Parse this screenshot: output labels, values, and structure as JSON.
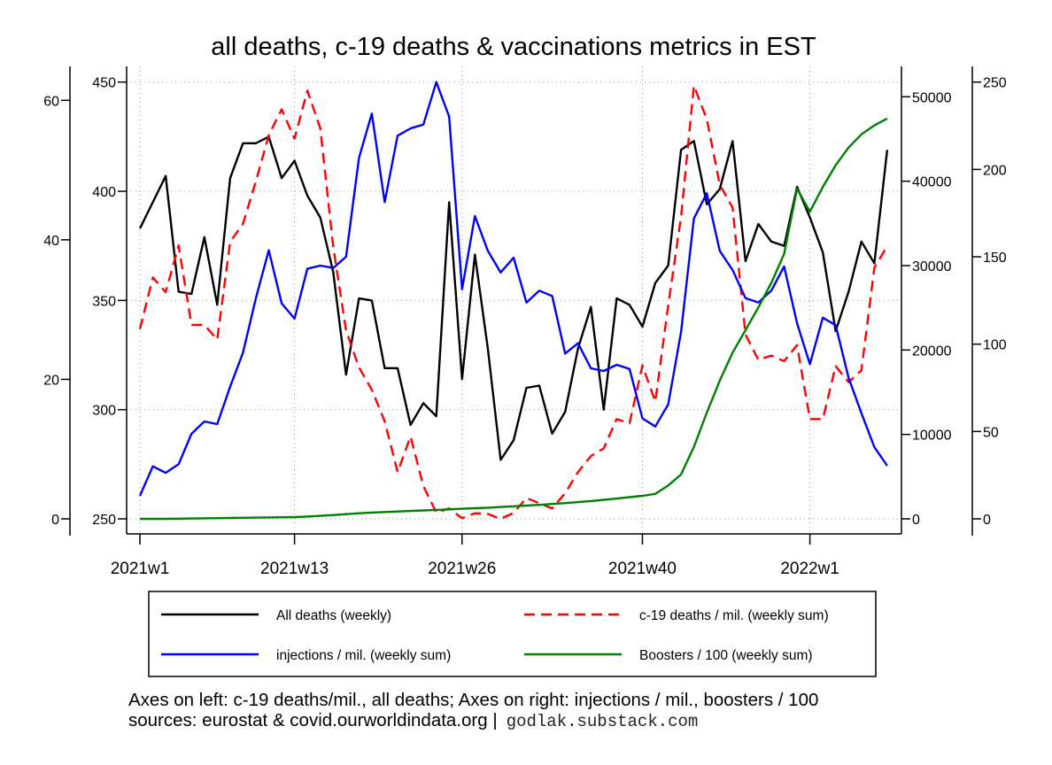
{
  "chart_data": {
    "type": "line",
    "title": "all deaths, c-19 deaths & vaccinations metrics in EST",
    "x": [
      "2021w1",
      "2021w2",
      "2021w3",
      "2021w4",
      "2021w5",
      "2021w6",
      "2021w7",
      "2021w8",
      "2021w9",
      "2021w10",
      "2021w11",
      "2021w12",
      "2021w13",
      "2021w14",
      "2021w15",
      "2021w16",
      "2021w17",
      "2021w18",
      "2021w19",
      "2021w20",
      "2021w21",
      "2021w22",
      "2021w23",
      "2021w24",
      "2021w25",
      "2021w26",
      "2021w27",
      "2021w28",
      "2021w29",
      "2021w30",
      "2021w31",
      "2021w32",
      "2021w33",
      "2021w34",
      "2021w35",
      "2021w36",
      "2021w37",
      "2021w38",
      "2021w39",
      "2021w40",
      "2021w41",
      "2021w42",
      "2021w43",
      "2021w44",
      "2021w45",
      "2021w46",
      "2021w47",
      "2021w48",
      "2021w49",
      "2021w50",
      "2021w51",
      "2021w52",
      "2022w1",
      "2022w2",
      "2022w3",
      "2022w4",
      "2022w5",
      "2022w6",
      "2022w7"
    ],
    "x_tick_labels": [
      "2021w1",
      "2021w13",
      "2021w26",
      "2021w40",
      "2022w1"
    ],
    "axes": {
      "left_outer": {
        "label": "c-19 deaths / mil.",
        "range": [
          0,
          60
        ],
        "ticks": [
          "0",
          "20",
          "40",
          "60"
        ]
      },
      "left_inner": {
        "label": "all deaths",
        "range": [
          250,
          450
        ],
        "ticks": [
          "250",
          "300",
          "350",
          "400",
          "450"
        ]
      },
      "right_inner": {
        "label": "injections / mil.",
        "range": [
          0,
          50000
        ],
        "ticks": [
          "0",
          "10000",
          "20000",
          "30000",
          "40000",
          "50000"
        ]
      },
      "right_outer": {
        "label": "boosters / 100",
        "range": [
          0,
          250
        ],
        "ticks": [
          "0",
          "50",
          "100",
          "150",
          "200",
          "250"
        ]
      }
    },
    "grid": true,
    "legend_position": "bottom",
    "series": [
      {
        "name": "All deaths (weekly)",
        "axis": "left_inner",
        "color": "#000000",
        "dash": false,
        "values": [
          383,
          395,
          407,
          354,
          353,
          379,
          348,
          406,
          422,
          422,
          425,
          406,
          414,
          398,
          388,
          363,
          316,
          351,
          350,
          319,
          319,
          293,
          303,
          297,
          395,
          314,
          371,
          328,
          277,
          286,
          310,
          311,
          289,
          299,
          328,
          347,
          300,
          351,
          348,
          338,
          358,
          366,
          419,
          423,
          394,
          401,
          423,
          368,
          385,
          377,
          375,
          402,
          388,
          372,
          336,
          354,
          377,
          367,
          419
        ]
      },
      {
        "name": "c-19 deaths / mil. (weekly sum)",
        "axis": "left_outer",
        "color": "#ff0000",
        "dash": true,
        "values": [
          27.2,
          34.6,
          32.5,
          39.2,
          27.8,
          27.8,
          25.7,
          39.7,
          42.3,
          48.4,
          55.0,
          58.7,
          54.5,
          61.4,
          56.0,
          39.0,
          27.0,
          21.7,
          18.5,
          14.0,
          6.7,
          11.8,
          4.7,
          0.9,
          1.5,
          0.1,
          0.8,
          0.7,
          0.0,
          0.85,
          3.0,
          2.25,
          1.5,
          3.7,
          6.7,
          9.0,
          10.1,
          14.3,
          13.7,
          22.0,
          16.8,
          30.6,
          43.3,
          62.1,
          57.3,
          47.9,
          44.6,
          26.4,
          22.8,
          23.4,
          22.6,
          24.9,
          14.3,
          14.3,
          21.9,
          19.6,
          21.3,
          36.0,
          39.1
        ]
      },
      {
        "name": "injections / mil. (weekly sum)",
        "axis": "right_inner",
        "color": "#0000ff",
        "dash": false,
        "values": [
          2730,
          6220,
          5450,
          6470,
          10070,
          11540,
          11220,
          15660,
          19690,
          26150,
          31810,
          25520,
          23710,
          29620,
          30000,
          29720,
          31050,
          42760,
          48010,
          37520,
          45380,
          46260,
          46710,
          51740,
          47650,
          27200,
          35870,
          31750,
          29190,
          30940,
          25620,
          27030,
          26400,
          19580,
          20800,
          17830,
          17520,
          18250,
          17760,
          11900,
          10940,
          13560,
          22130,
          35590,
          38570,
          31750,
          29470,
          26150,
          25630,
          27030,
          29890,
          23180,
          18320,
          23830,
          22940,
          16710,
          12510,
          8500,
          6290
        ]
      },
      {
        "name": "Boosters / 100 (weekly sum)",
        "axis": "right_outer",
        "color": "#008000",
        "dash": false,
        "values": [
          0,
          0,
          0,
          0.1,
          0.2,
          0.3,
          0.4,
          0.5,
          0.6,
          0.7,
          0.8,
          0.9,
          1.0,
          1.3,
          1.7,
          2.2,
          2.7,
          3.2,
          3.6,
          3.9,
          4.2,
          4.5,
          4.8,
          5.1,
          5.4,
          5.8,
          6.1,
          6.4,
          6.8,
          7.2,
          7.6,
          8.0,
          8.5,
          9.0,
          9.6,
          10.2,
          10.9,
          11.6,
          12.4,
          13.2,
          14.3,
          19.1,
          25.4,
          41.2,
          60.8,
          79.1,
          95.1,
          108,
          121,
          135,
          151.7,
          189,
          175.8,
          190,
          202.4,
          212.5,
          220.1,
          225.2,
          229.1
        ]
      }
    ],
    "legend": [
      "All deaths (weekly)",
      "c-19 deaths / mil. (weekly sum)",
      "injections / mil. (weekly sum)",
      "Boosters / 100 (weekly sum)"
    ]
  },
  "footer": {
    "line1": "Axes on left: c-19 deaths/mil., all deaths; Axes on right: injections / mil., boosters / 100",
    "line2": "sources: eurostat & covid.ourworldindata.org |",
    "site": "godlak.substack.com"
  }
}
